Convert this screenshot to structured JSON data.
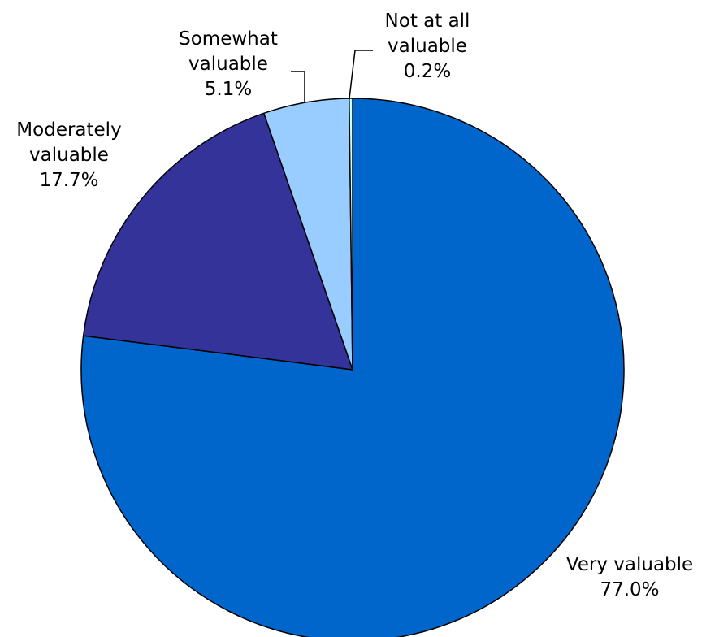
{
  "chart_data": {
    "type": "pie",
    "title": "",
    "start_angle_deg": 0,
    "direction": "clockwise",
    "legend": "none",
    "slices": [
      {
        "label_lines": [
          "Very valuable"
        ],
        "value": 77.0,
        "value_label": "77.0%",
        "color": "#0066CC"
      },
      {
        "label_lines": [
          "Moderately",
          "valuable"
        ],
        "value": 17.7,
        "value_label": "17.7%",
        "color": "#333399"
      },
      {
        "label_lines": [
          "Somewhat",
          "valuable"
        ],
        "value": 5.1,
        "value_label": "5.1%",
        "color": "#99CCFF"
      },
      {
        "label_lines": [
          "Not at all",
          "valuable"
        ],
        "value": 0.2,
        "value_label": "0.2%",
        "color": "#CCFFFF"
      }
    ]
  }
}
